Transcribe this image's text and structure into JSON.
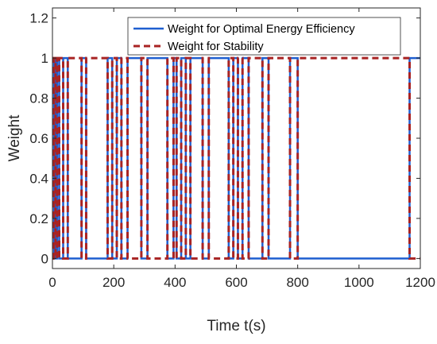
{
  "chart_data": {
    "type": "line",
    "xlabel": "Time  t(s)",
    "ylabel": "Weight",
    "xlim": [
      0,
      1200
    ],
    "ylim": [
      -0.05,
      1.25
    ],
    "xticks": [
      0,
      200,
      400,
      600,
      800,
      1000,
      1200
    ],
    "yticks": [
      0,
      0.2,
      0.4,
      0.6,
      0.8,
      1,
      1.2
    ],
    "ytick_labels": [
      "0",
      "0.2",
      "0.4",
      "0.6",
      "0.8",
      "1",
      "1.2"
    ],
    "grid": false,
    "legend_position": "top-right",
    "series": [
      {
        "name": "Weight for Optimal Energy Efficiency",
        "color": "#1f5fd0",
        "style": "solid",
        "x": [
          0,
          5,
          5,
          10,
          10,
          15,
          15,
          22,
          22,
          35,
          35,
          50,
          50,
          95,
          95,
          110,
          110,
          180,
          180,
          195,
          195,
          210,
          210,
          225,
          225,
          245,
          245,
          290,
          290,
          310,
          310,
          375,
          375,
          395,
          395,
          405,
          405,
          420,
          420,
          435,
          435,
          450,
          450,
          490,
          490,
          510,
          510,
          575,
          575,
          590,
          590,
          605,
          605,
          620,
          620,
          640,
          640,
          685,
          685,
          705,
          705,
          775,
          775,
          800,
          800,
          1165,
          1165,
          1200
        ],
        "y": [
          0,
          0,
          1,
          1,
          0,
          0,
          1,
          1,
          0,
          0,
          1,
          1,
          0,
          0,
          1,
          1,
          0,
          0,
          1,
          1,
          0,
          0,
          1,
          1,
          0,
          0,
          1,
          1,
          0,
          0,
          1,
          1,
          0,
          0,
          1,
          1,
          0,
          0,
          1,
          1,
          0,
          0,
          1,
          1,
          0,
          0,
          1,
          1,
          0,
          0,
          1,
          1,
          0,
          0,
          1,
          1,
          0,
          0,
          1,
          1,
          0,
          0,
          1,
          1,
          0,
          0,
          1,
          1
        ]
      },
      {
        "name": "Weight for Stability",
        "color": "#a82323",
        "style": "dashed",
        "x": [
          0,
          5,
          5,
          10,
          10,
          15,
          15,
          22,
          22,
          35,
          35,
          50,
          50,
          95,
          95,
          110,
          110,
          180,
          180,
          195,
          195,
          210,
          210,
          225,
          225,
          245,
          245,
          290,
          290,
          310,
          310,
          375,
          375,
          395,
          395,
          405,
          405,
          420,
          420,
          435,
          435,
          450,
          450,
          490,
          490,
          510,
          510,
          575,
          575,
          590,
          590,
          605,
          605,
          620,
          620,
          640,
          640,
          685,
          685,
          705,
          705,
          775,
          775,
          800,
          800,
          1165,
          1165,
          1200
        ],
        "y": [
          1,
          1,
          0,
          0,
          1,
          1,
          0,
          0,
          1,
          1,
          0,
          0,
          1,
          1,
          0,
          0,
          1,
          1,
          0,
          0,
          1,
          1,
          0,
          0,
          1,
          1,
          0,
          0,
          1,
          1,
          0,
          0,
          1,
          1,
          0,
          0,
          1,
          1,
          0,
          0,
          1,
          1,
          0,
          0,
          1,
          1,
          0,
          0,
          1,
          1,
          0,
          0,
          1,
          1,
          0,
          0,
          1,
          1,
          0,
          0,
          1,
          1,
          0,
          0,
          1,
          1,
          0,
          0
        ]
      }
    ]
  }
}
